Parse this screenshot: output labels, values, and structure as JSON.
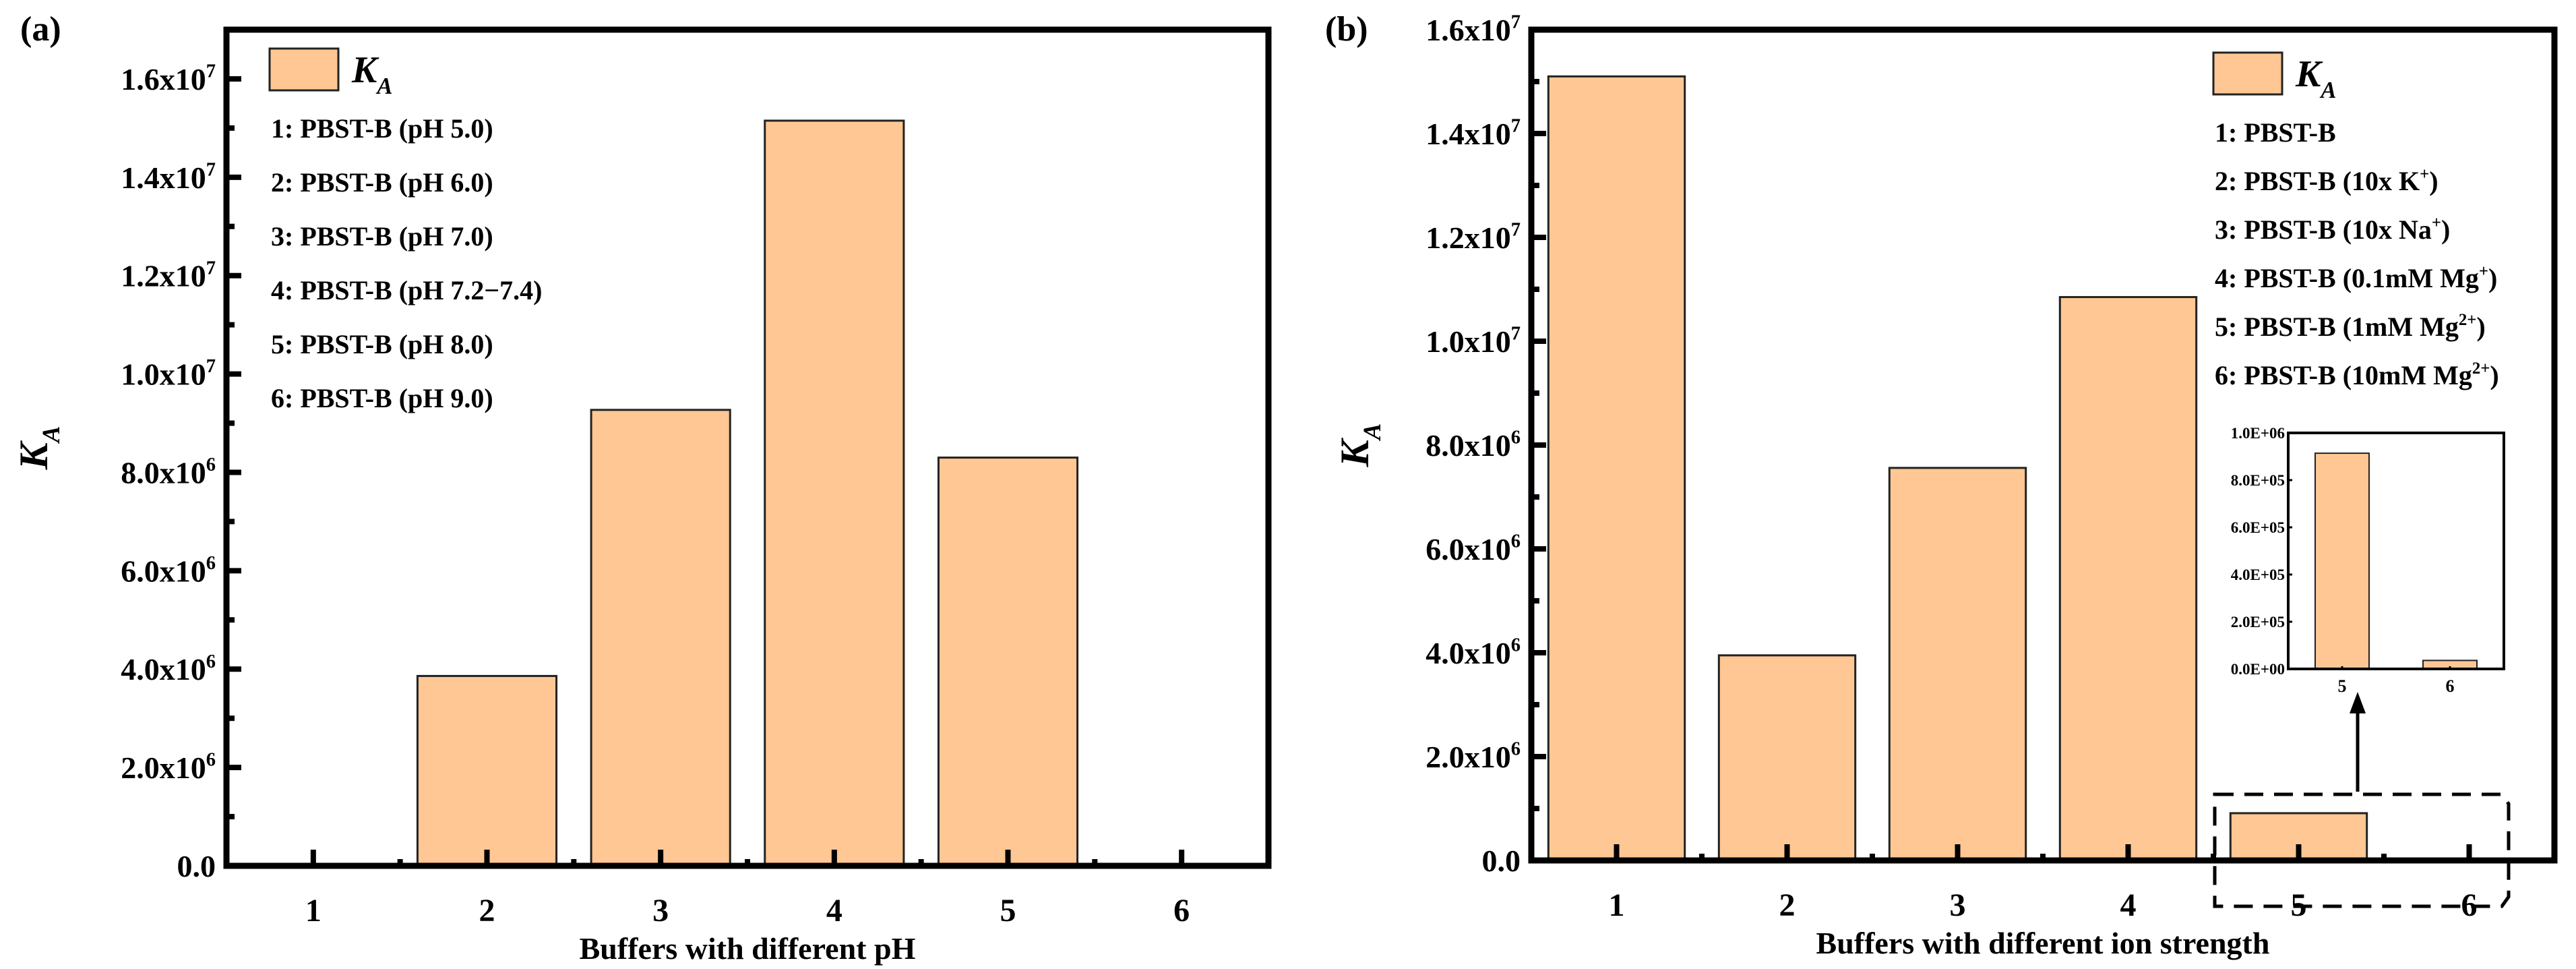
{
  "colors": {
    "bar": "#FFC794",
    "bar_edge": "#222222",
    "axis": "#000000"
  },
  "chart_data": [
    {
      "type": "bar",
      "panel_label": "(a)",
      "categories": [
        "1",
        "2",
        "3",
        "4",
        "5",
        "6"
      ],
      "values": [
        0,
        3860000,
        9270000,
        15150000,
        8300000,
        0
      ],
      "xlabel": "Buffers with different pH",
      "ylabel": "K_{A}",
      "ylim": [
        0,
        17000000
      ],
      "yticks": [
        0,
        2000000,
        4000000,
        6000000,
        8000000,
        10000000,
        12000000,
        14000000,
        16000000
      ],
      "ytick_labels": [
        "0.0",
        "2.0x10^{6}",
        "4.0x10^{6}",
        "6.0x10^{6}",
        "8.0x10^{6}",
        "1.0x10^{7}",
        "1.2x10^{7}",
        "1.4x10^{7}",
        "1.6x10^{7}"
      ],
      "legend": {
        "placement": "top-left",
        "series_label": "K_{A}",
        "items": [
          "1: PBST-B (pH 5.0)",
          "2: PBST-B (pH 6.0)",
          "3: PBST-B (pH 7.0)",
          "4: PBST-B (pH 7.2−7.4)",
          "5: PBST-B (pH 8.0)",
          "6: PBST-B (pH 9.0)"
        ]
      }
    },
    {
      "type": "bar",
      "panel_label": "(b)",
      "categories": [
        "1",
        "2",
        "3",
        "4",
        "5",
        "6"
      ],
      "values": [
        15100000,
        3950000,
        7560000,
        10850000,
        910000,
        36000
      ],
      "xlabel": "Buffers with different ion strength",
      "ylabel": "K_{A}",
      "ylim": [
        0,
        16000000
      ],
      "yticks": [
        0,
        2000000,
        4000000,
        6000000,
        8000000,
        10000000,
        12000000,
        14000000,
        16000000
      ],
      "ytick_labels": [
        "0.0",
        "2.0x10^{6}",
        "4.0x10^{6}",
        "6.0x10^{6}",
        "8.0x10^{6}",
        "1.0x10^{7}",
        "1.2x10^{7}",
        "1.4x10^{7}",
        "1.6x10^{7}"
      ],
      "legend": {
        "placement": "top-right",
        "series_label": "K_{A}",
        "items": [
          "1: PBST-B",
          "2: PBST-B (10x K^{+})",
          "3: PBST-B (10x Na^{+})",
          "4: PBST-B (0.1mM Mg^{+})",
          "5: PBST-B (1mM Mg^{2+})",
          "6: PBST-B (10mM Mg^{2+})"
        ]
      },
      "inset": {
        "type": "bar",
        "categories": [
          "5",
          "6"
        ],
        "values": [
          914000,
          36000
        ],
        "ylim": [
          0,
          1000000
        ],
        "yticks": [
          0,
          200000,
          400000,
          600000,
          800000,
          1000000
        ],
        "ytick_labels": [
          "0.0E+00",
          "2.0E+05",
          "4.0E+05",
          "6.0E+05",
          "8.0E+05",
          "1.0E+06"
        ]
      }
    }
  ]
}
